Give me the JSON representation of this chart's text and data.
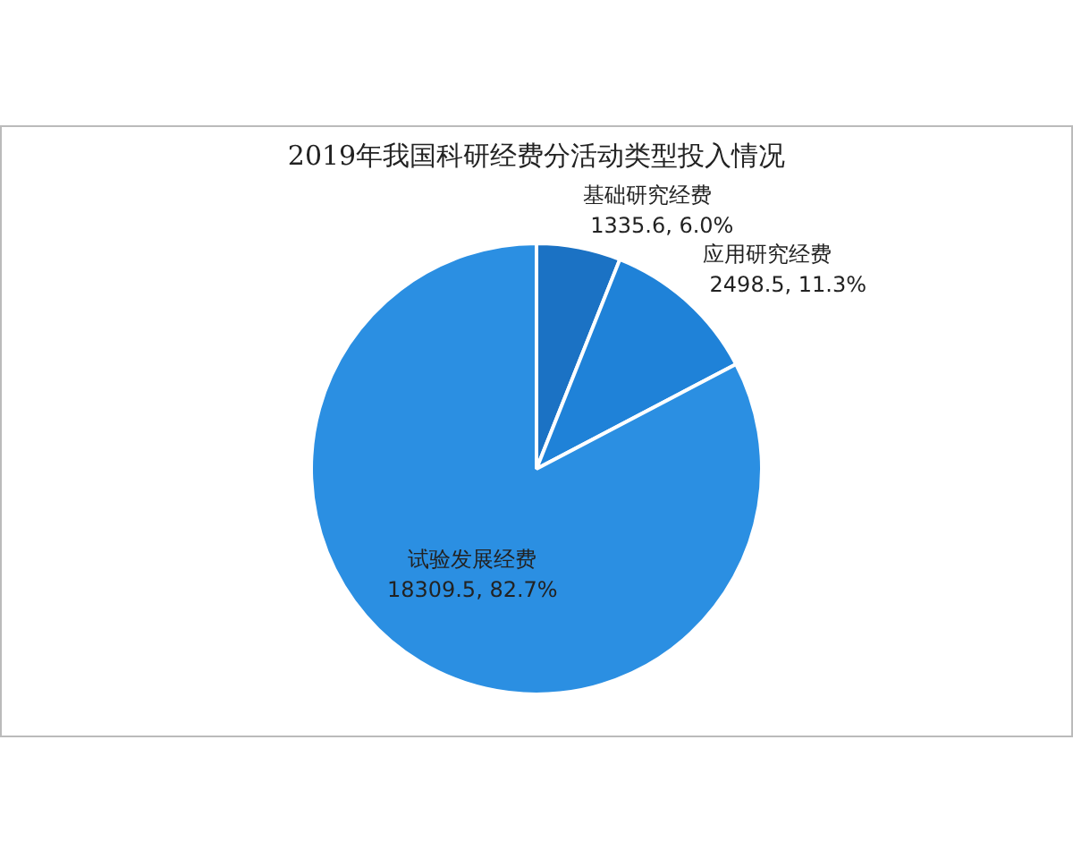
{
  "chart_data": {
    "type": "pie",
    "title": "2019年我国科研经费分活动类型投入情况",
    "categories": [
      "基础研究经费",
      "应用研究经费",
      "试验发展经费"
    ],
    "values": [
      1335.6,
      2498.5,
      18309.5
    ],
    "colors": [
      "#1b72c4",
      "#1f82d8",
      "#2b8fe2"
    ],
    "value_labels": [
      "1335.6, 6.0%",
      "2498.5, 11.3%",
      "18309.5, 82.7%"
    ],
    "legend": false
  }
}
